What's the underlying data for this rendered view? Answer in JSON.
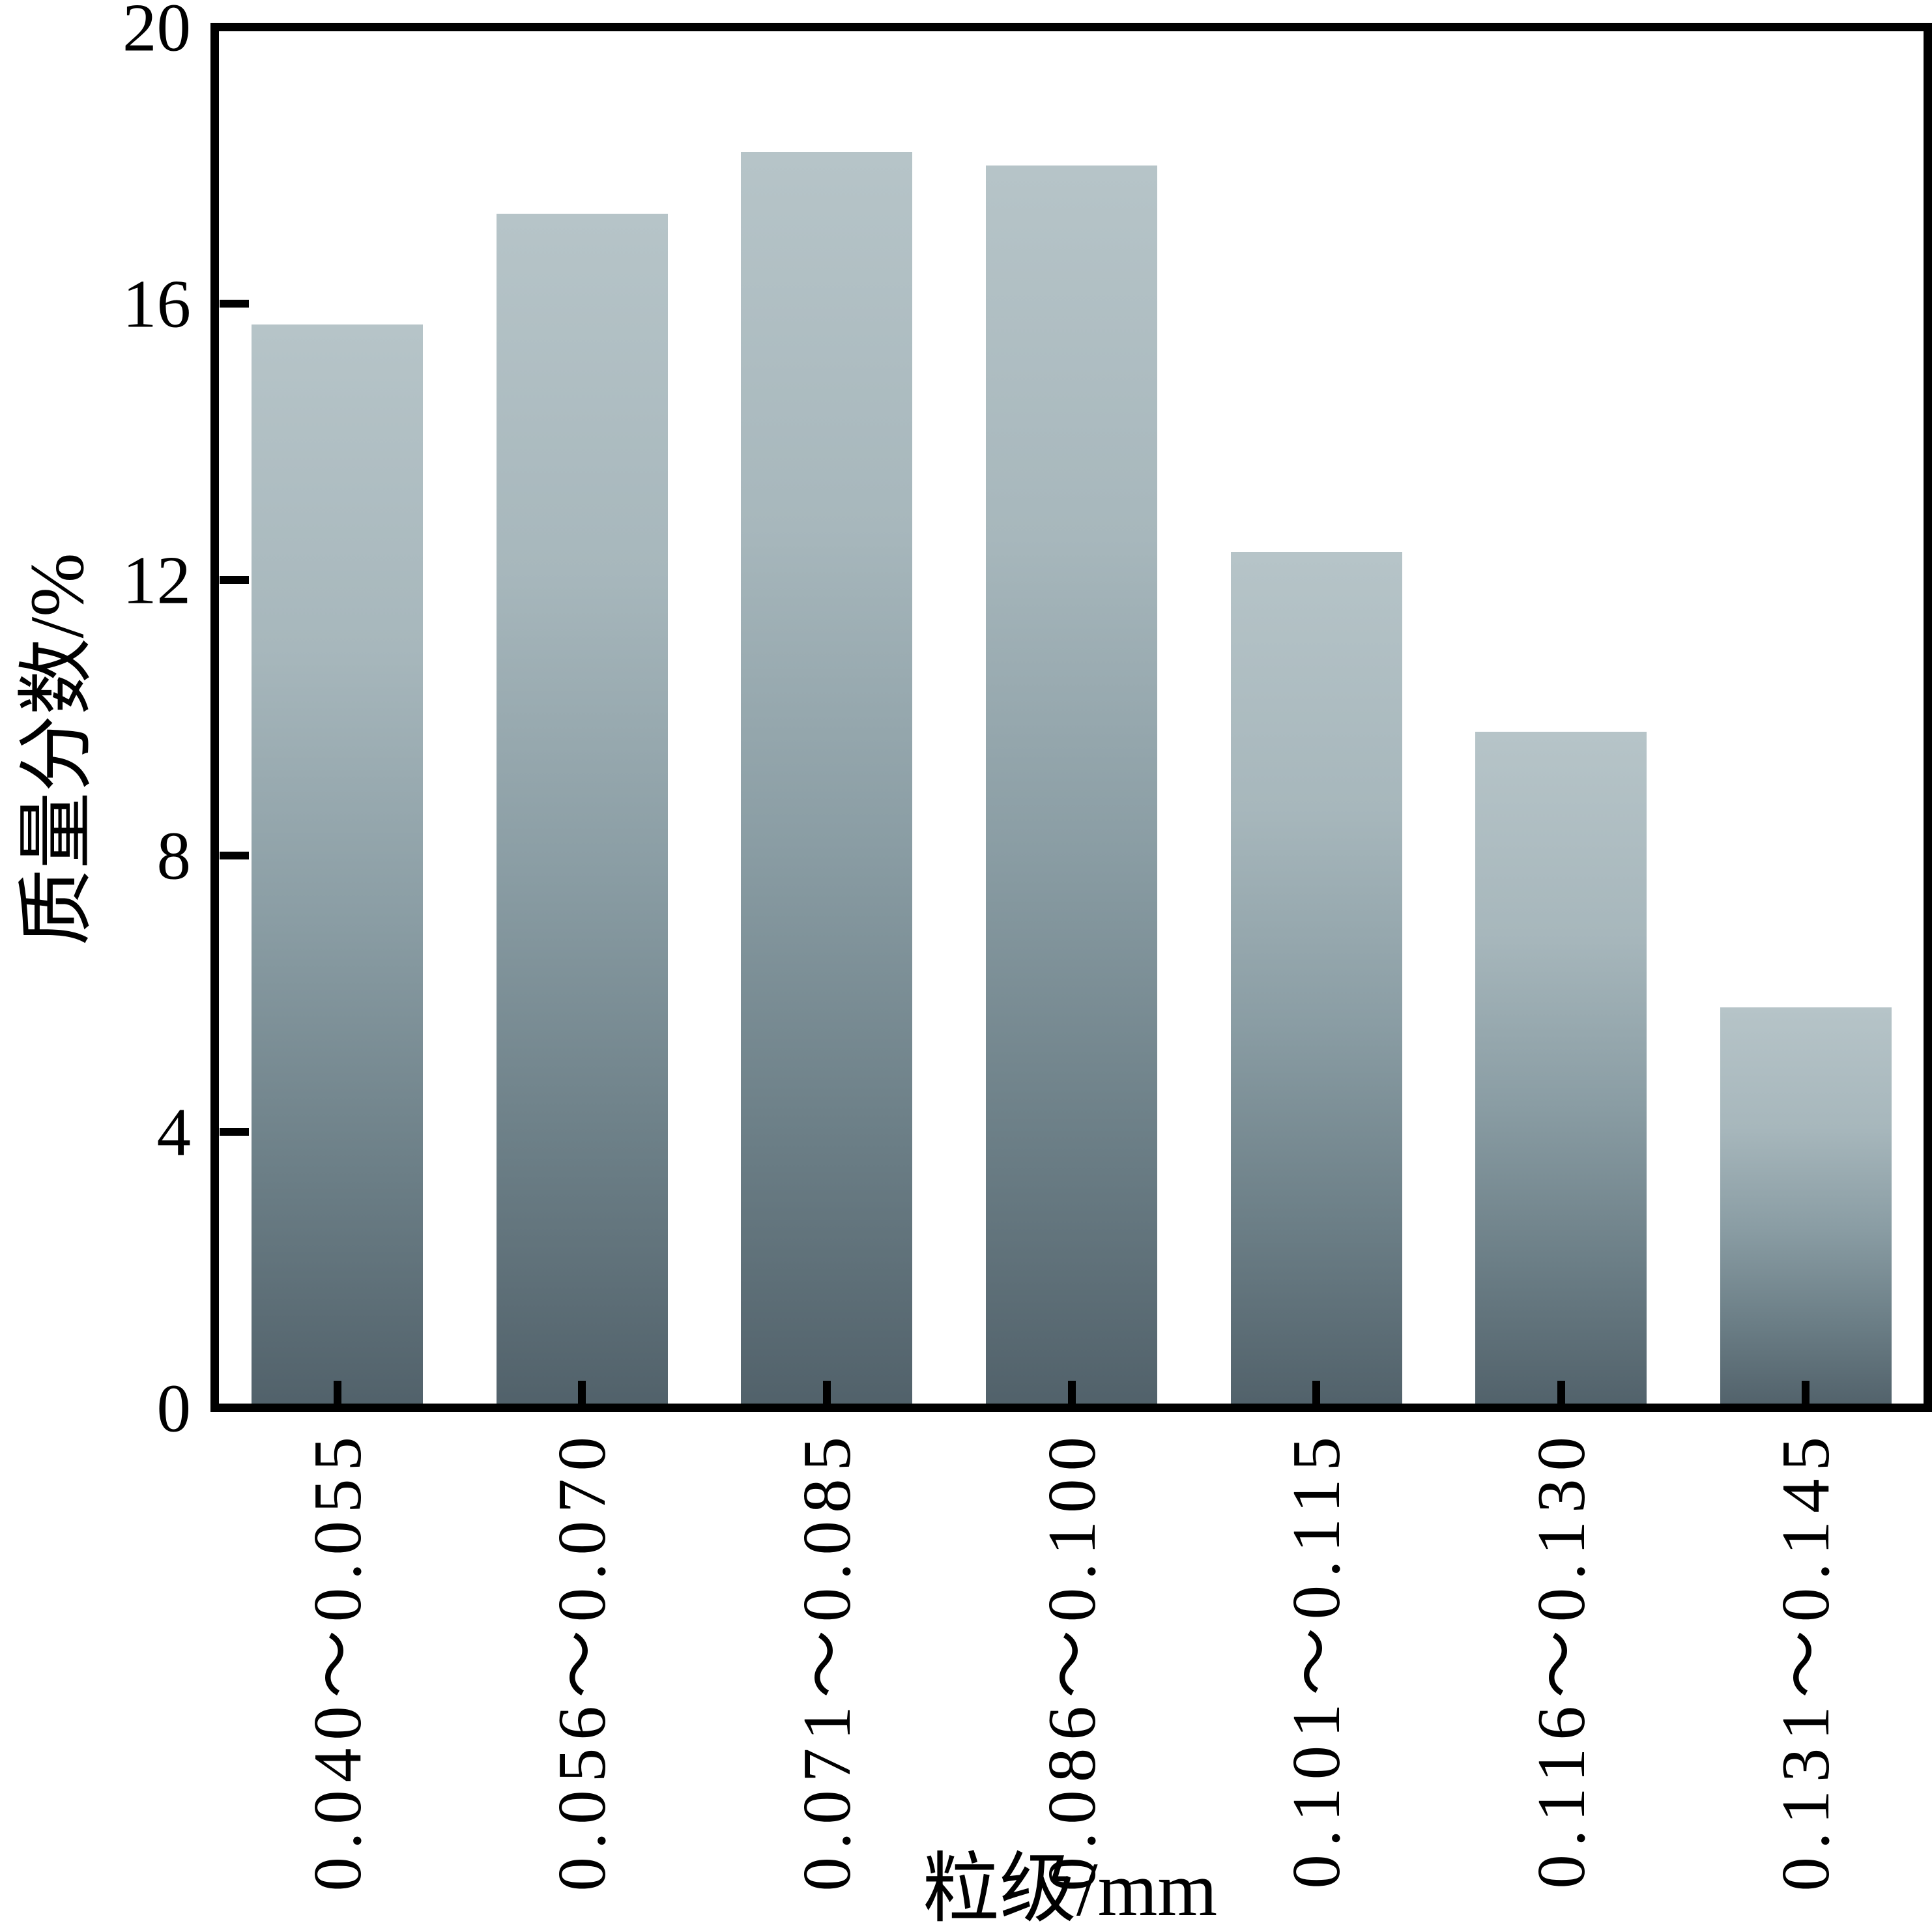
{
  "chart_data": {
    "type": "bar",
    "title": "",
    "categories": [
      "0.040～0.055",
      "0.056～0.070",
      "0.071～0.085",
      "0.086～0.100",
      "0.101～0.115",
      "0.116～0.130",
      "0.131～0.145"
    ],
    "values": [
      15.7,
      17.3,
      18.2,
      18.0,
      12.4,
      9.8,
      5.8
    ],
    "xlabel": "粒级/mm",
    "ylabel": "质量分数/%",
    "ylim": [
      0,
      20
    ],
    "yticks": [
      20,
      16,
      12,
      8,
      4,
      0
    ],
    "ytick_labels": [
      "20",
      "16",
      "12",
      "8",
      "4",
      "0"
    ],
    "grid": false,
    "legend": null,
    "tick_direction": "in",
    "bar_color_top": "#b6c4c8",
    "bar_color_bottom": "#51616a",
    "frame_color": "#000000"
  }
}
